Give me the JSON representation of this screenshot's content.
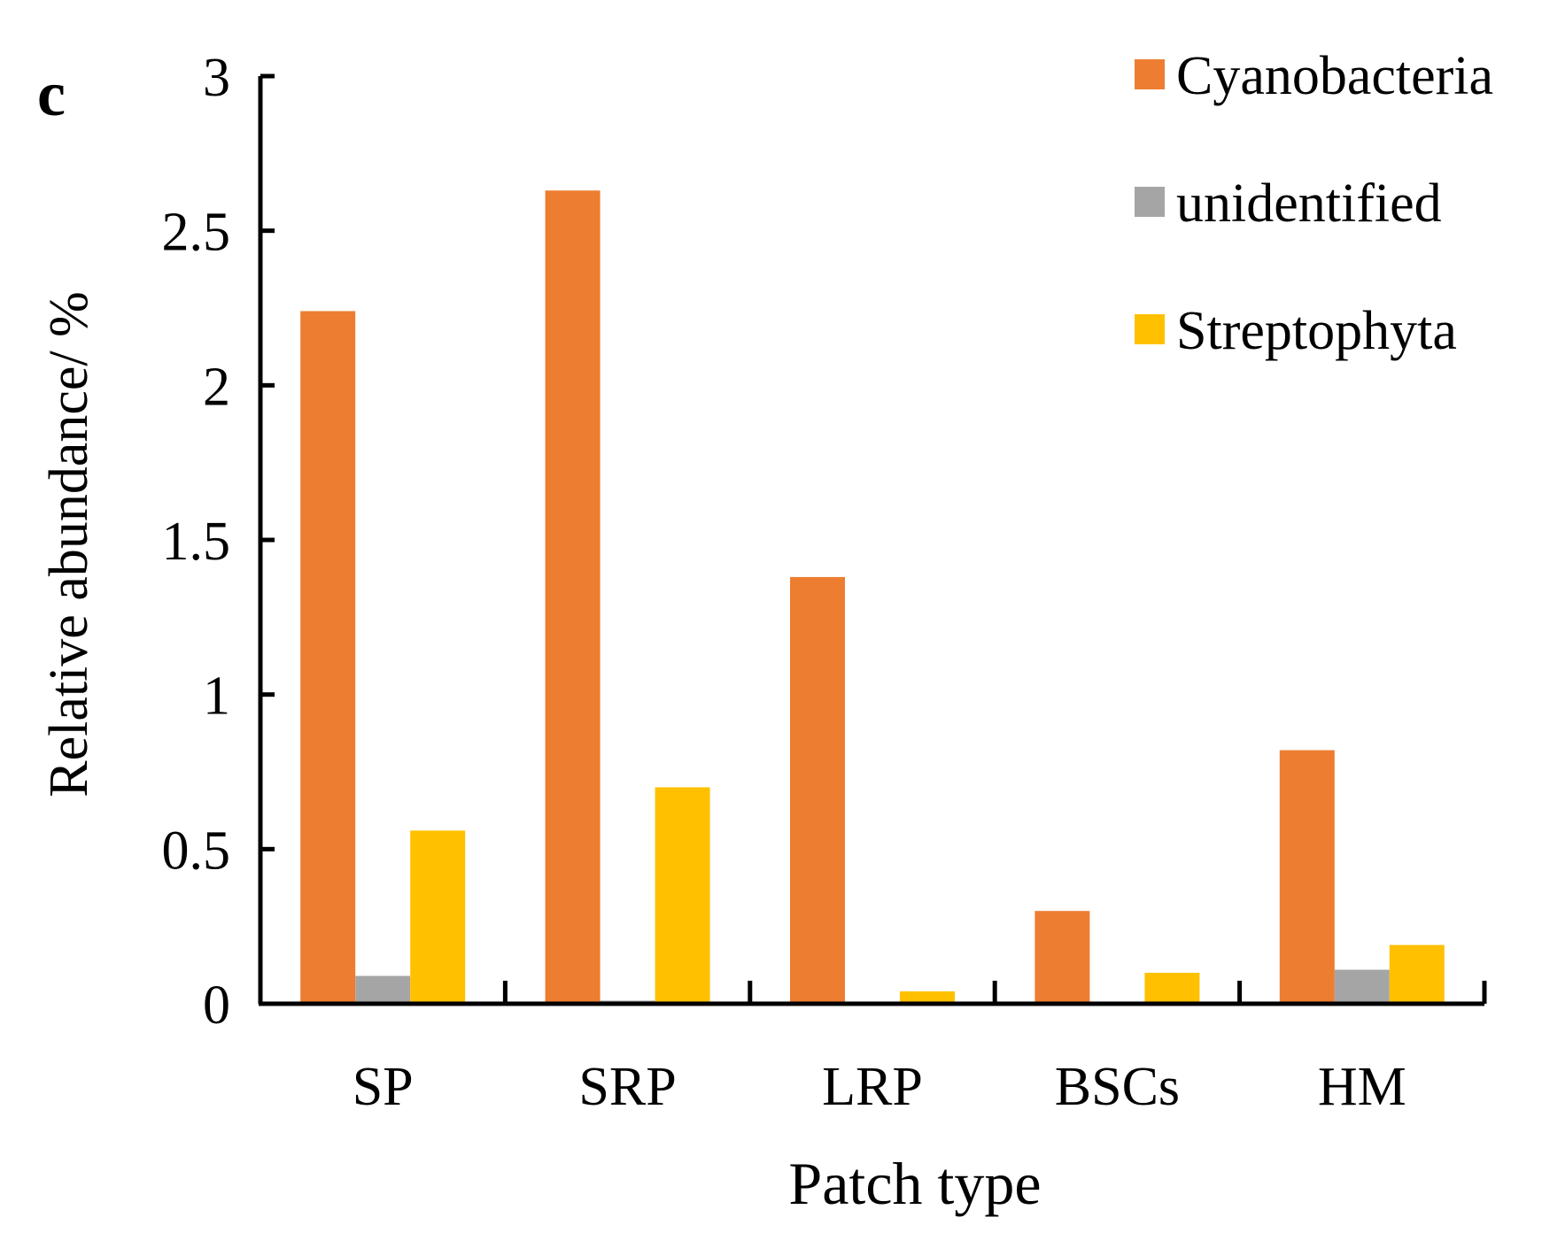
{
  "panel_label": "c",
  "chart_data": {
    "type": "bar",
    "title": "",
    "xlabel": "Patch type",
    "ylabel": "Relative abundance/ %",
    "categories": [
      "SP",
      "SRP",
      "LRP",
      "BSCs",
      "HM"
    ],
    "ylim": [
      0,
      3
    ],
    "yticks": [
      "0",
      "0.5",
      "1",
      "1.5",
      "2",
      "2.5",
      "3"
    ],
    "legend_position": "top-right",
    "series": [
      {
        "name": "Cyanobacteria",
        "color": "#ED7D31",
        "values": [
          2.24,
          2.63,
          1.38,
          0.3,
          0.82
        ]
      },
      {
        "name": "unidentified",
        "color": "#A5A5A5",
        "values": [
          0.09,
          0.01,
          0.0,
          0.0,
          0.11
        ]
      },
      {
        "name": "Streptophyta",
        "color": "#FFC000",
        "values": [
          0.56,
          0.7,
          0.04,
          0.1,
          0.19
        ]
      }
    ]
  }
}
